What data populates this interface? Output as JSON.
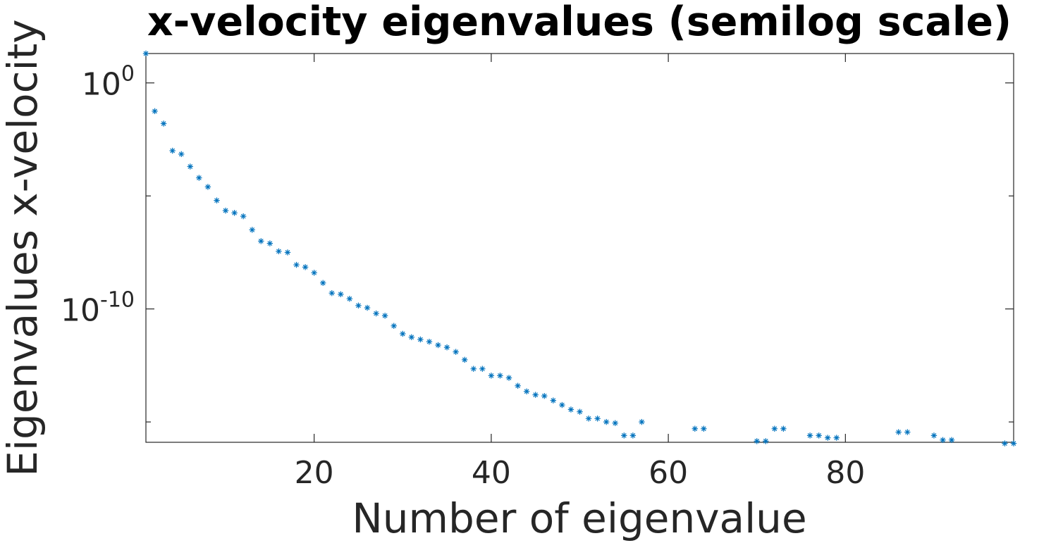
{
  "chart_data": {
    "type": "scatter",
    "title": "x-velocity eigenvalues (semilog scale)",
    "xlabel": "Number of eigenvalue",
    "ylabel": "Eigenvalues x-velocity",
    "y_scale": "log",
    "xlim": [
      1,
      99
    ],
    "ylim_log10": [
      -15.9,
      1.3
    ],
    "x_ticks": [
      20,
      40,
      60,
      80
    ],
    "x_tick_labels": [
      "20",
      "40",
      "60",
      "80"
    ],
    "y_ticks_log10": [
      0,
      -10
    ],
    "y_tick_base": "10",
    "y_tick_exponents": [
      "0",
      "-10"
    ],
    "minor_y_ticks_log10": [
      -5,
      -15
    ],
    "marker": "*",
    "marker_color": "#0072bd",
    "grid": false,
    "series": [
      {
        "name": "x-velocity eigenvalues",
        "x": [
          1,
          2,
          3,
          4,
          5,
          6,
          7,
          8,
          9,
          10,
          11,
          12,
          13,
          14,
          15,
          16,
          17,
          18,
          19,
          20,
          21,
          22,
          23,
          24,
          25,
          26,
          27,
          28,
          29,
          30,
          31,
          32,
          33,
          34,
          35,
          36,
          37,
          38,
          39,
          40,
          41,
          42,
          43,
          44,
          45,
          46,
          47,
          48,
          49,
          50,
          51,
          52,
          53,
          54,
          55,
          56,
          57,
          63,
          64,
          70,
          71,
          72,
          73,
          76,
          77,
          78,
          79,
          86,
          87,
          90,
          91,
          92,
          98,
          99
        ],
        "log10_values": [
          1.3,
          -1.25,
          -1.8,
          -3.0,
          -3.15,
          -3.7,
          -4.2,
          -4.6,
          -5.2,
          -5.65,
          -5.75,
          -5.9,
          -6.5,
          -7.0,
          -7.1,
          -7.45,
          -7.5,
          -8.05,
          -8.15,
          -8.4,
          -8.85,
          -9.3,
          -9.35,
          -9.55,
          -9.85,
          -9.95,
          -10.2,
          -10.3,
          -10.75,
          -11.1,
          -11.25,
          -11.35,
          -11.45,
          -11.6,
          -11.7,
          -11.9,
          -12.25,
          -12.65,
          -12.65,
          -12.95,
          -12.95,
          -13.05,
          -13.4,
          -13.65,
          -13.8,
          -13.85,
          -14.05,
          -14.25,
          -14.45,
          -14.55,
          -14.85,
          -14.85,
          -15.0,
          -15.05,
          -15.6,
          -15.6,
          -15.0,
          -15.3,
          -15.3,
          -15.85,
          -15.85,
          -15.3,
          -15.3,
          -15.6,
          -15.6,
          -15.7,
          -15.7,
          -15.45,
          -15.45,
          -15.6,
          -15.8,
          -15.8,
          -15.95,
          -15.95
        ]
      }
    ]
  }
}
